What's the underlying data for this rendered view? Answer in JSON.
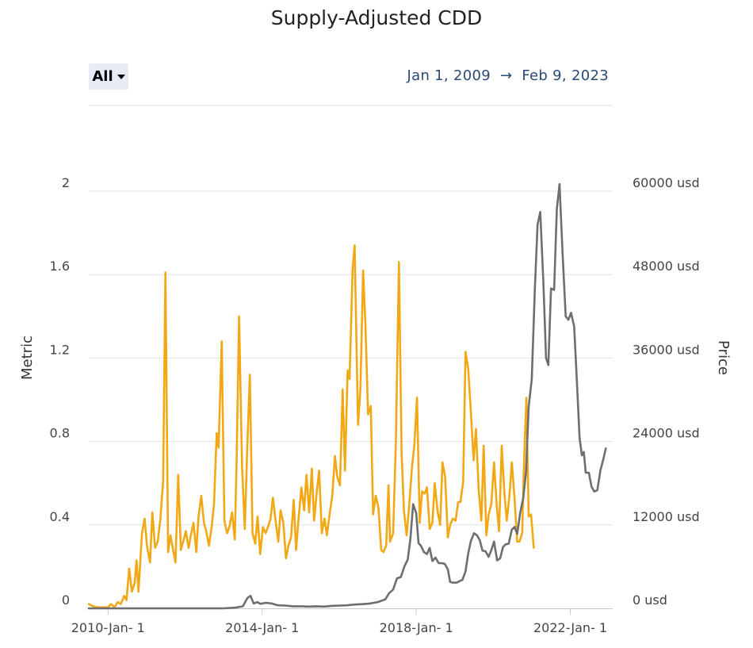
{
  "page": {
    "title": "Supply-Adjusted CDD",
    "range_selector": {
      "selected": "All"
    },
    "date_range": {
      "start": "Jan 1, 2009",
      "arrow": "→",
      "end": "Feb 9, 2023"
    }
  },
  "chart_data": {
    "type": "line",
    "title": "Supply-Adjusted CDD",
    "x_axis": {
      "min": 2009.5,
      "max": 2023.1,
      "ticks": [
        {
          "value": 2010.0,
          "label": "2010-Jan- 1"
        },
        {
          "value": 2014.0,
          "label": "2014-Jan- 1"
        },
        {
          "value": 2018.0,
          "label": "2018-Jan- 1"
        },
        {
          "value": 2022.0,
          "label": "2022-Jan- 1"
        }
      ]
    },
    "y_left": {
      "label": "Metric",
      "min": 0,
      "max": 2,
      "ticks": [
        "0",
        "0.4",
        "0.8",
        "1.2",
        "1.6",
        "2"
      ]
    },
    "y_right": {
      "label": "Price",
      "min": 0,
      "max": 60000,
      "ticks": [
        "0 usd",
        "12000 usd",
        "24000 usd",
        "36000 usd",
        "48000 usd",
        "60000 usd"
      ]
    },
    "grid": true,
    "series": [
      {
        "axis": "left",
        "color": "#f2a814",
        "points": [
          [
            2009.5,
            0.02
          ],
          [
            2009.62,
            0.01
          ],
          [
            2009.7,
            0.005
          ],
          [
            2009.85,
            0.005
          ],
          [
            2010.0,
            0.005
          ],
          [
            2010.08,
            0.02
          ],
          [
            2010.17,
            0.005
          ],
          [
            2010.25,
            0.03
          ],
          [
            2010.33,
            0.02
          ],
          [
            2010.42,
            0.06
          ],
          [
            2010.48,
            0.04
          ],
          [
            2010.55,
            0.19
          ],
          [
            2010.62,
            0.08
          ],
          [
            2010.69,
            0.12
          ],
          [
            2010.74,
            0.23
          ],
          [
            2010.79,
            0.08
          ],
          [
            2010.88,
            0.36
          ],
          [
            2010.95,
            0.43
          ],
          [
            2011.01,
            0.3
          ],
          [
            2011.09,
            0.22
          ],
          [
            2011.15,
            0.46
          ],
          [
            2011.22,
            0.29
          ],
          [
            2011.29,
            0.32
          ],
          [
            2011.36,
            0.43
          ],
          [
            2011.43,
            0.61
          ],
          [
            2011.49,
            1.61
          ],
          [
            2011.56,
            0.27
          ],
          [
            2011.62,
            0.35
          ],
          [
            2011.69,
            0.28
          ],
          [
            2011.75,
            0.22
          ],
          [
            2011.82,
            0.64
          ],
          [
            2011.89,
            0.28
          ],
          [
            2011.95,
            0.32
          ],
          [
            2012.02,
            0.37
          ],
          [
            2012.09,
            0.29
          ],
          [
            2012.15,
            0.35
          ],
          [
            2012.22,
            0.41
          ],
          [
            2012.29,
            0.27
          ],
          [
            2012.35,
            0.44
          ],
          [
            2012.42,
            0.54
          ],
          [
            2012.49,
            0.41
          ],
          [
            2012.55,
            0.37
          ],
          [
            2012.62,
            0.3
          ],
          [
            2012.69,
            0.39
          ],
          [
            2012.75,
            0.5
          ],
          [
            2012.82,
            0.84
          ],
          [
            2012.87,
            0.77
          ],
          [
            2012.95,
            1.28
          ],
          [
            2013.02,
            0.42
          ],
          [
            2013.09,
            0.36
          ],
          [
            2013.15,
            0.39
          ],
          [
            2013.22,
            0.46
          ],
          [
            2013.29,
            0.33
          ],
          [
            2013.34,
            0.72
          ],
          [
            2013.4,
            1.4
          ],
          [
            2013.48,
            0.68
          ],
          [
            2013.55,
            0.38
          ],
          [
            2013.62,
            0.8
          ],
          [
            2013.68,
            1.12
          ],
          [
            2013.75,
            0.36
          ],
          [
            2013.82,
            0.31
          ],
          [
            2013.88,
            0.44
          ],
          [
            2013.95,
            0.26
          ],
          [
            2014.02,
            0.39
          ],
          [
            2014.09,
            0.36
          ],
          [
            2014.15,
            0.39
          ],
          [
            2014.22,
            0.43
          ],
          [
            2014.28,
            0.53
          ],
          [
            2014.35,
            0.42
          ],
          [
            2014.42,
            0.32
          ],
          [
            2014.48,
            0.47
          ],
          [
            2014.55,
            0.41
          ],
          [
            2014.62,
            0.24
          ],
          [
            2014.68,
            0.3
          ],
          [
            2014.75,
            0.34
          ],
          [
            2014.82,
            0.52
          ],
          [
            2014.88,
            0.28
          ],
          [
            2014.95,
            0.44
          ],
          [
            2015.02,
            0.58
          ],
          [
            2015.09,
            0.47
          ],
          [
            2015.15,
            0.64
          ],
          [
            2015.22,
            0.46
          ],
          [
            2015.29,
            0.67
          ],
          [
            2015.35,
            0.42
          ],
          [
            2015.42,
            0.56
          ],
          [
            2015.48,
            0.66
          ],
          [
            2015.55,
            0.36
          ],
          [
            2015.62,
            0.43
          ],
          [
            2015.68,
            0.35
          ],
          [
            2015.75,
            0.45
          ],
          [
            2015.82,
            0.54
          ],
          [
            2015.89,
            0.73
          ],
          [
            2015.95,
            0.63
          ],
          [
            2016.02,
            0.59
          ],
          [
            2016.09,
            1.05
          ],
          [
            2016.15,
            0.66
          ],
          [
            2016.22,
            1.14
          ],
          [
            2016.27,
            1.1
          ],
          [
            2016.35,
            1.63
          ],
          [
            2016.4,
            1.74
          ],
          [
            2016.49,
            0.88
          ],
          [
            2016.55,
            1.05
          ],
          [
            2016.62,
            1.62
          ],
          [
            2016.68,
            1.36
          ],
          [
            2016.75,
            0.93
          ],
          [
            2016.82,
            0.97
          ],
          [
            2016.88,
            0.45
          ],
          [
            2016.95,
            0.54
          ],
          [
            2017.02,
            0.48
          ],
          [
            2017.09,
            0.28
          ],
          [
            2017.15,
            0.27
          ],
          [
            2017.22,
            0.3
          ],
          [
            2017.28,
            0.59
          ],
          [
            2017.32,
            0.32
          ],
          [
            2017.4,
            0.36
          ],
          [
            2017.47,
            0.79
          ],
          [
            2017.55,
            1.66
          ],
          [
            2017.62,
            0.74
          ],
          [
            2017.68,
            0.47
          ],
          [
            2017.75,
            0.35
          ],
          [
            2017.82,
            0.5
          ],
          [
            2017.89,
            0.68
          ],
          [
            2017.95,
            0.78
          ],
          [
            2018.02,
            1.01
          ],
          [
            2018.09,
            0.41
          ],
          [
            2018.15,
            0.56
          ],
          [
            2018.22,
            0.55
          ],
          [
            2018.28,
            0.58
          ],
          [
            2018.35,
            0.38
          ],
          [
            2018.42,
            0.41
          ],
          [
            2018.48,
            0.6
          ],
          [
            2018.55,
            0.47
          ],
          [
            2018.62,
            0.4
          ],
          [
            2018.68,
            0.7
          ],
          [
            2018.75,
            0.63
          ],
          [
            2018.82,
            0.34
          ],
          [
            2018.88,
            0.4
          ],
          [
            2018.95,
            0.43
          ],
          [
            2019.02,
            0.42
          ],
          [
            2019.09,
            0.51
          ],
          [
            2019.15,
            0.51
          ],
          [
            2019.22,
            0.61
          ],
          [
            2019.28,
            1.23
          ],
          [
            2019.35,
            1.15
          ],
          [
            2019.42,
            0.94
          ],
          [
            2019.49,
            0.71
          ],
          [
            2019.55,
            0.86
          ],
          [
            2019.62,
            0.57
          ],
          [
            2019.69,
            0.42
          ],
          [
            2019.75,
            0.78
          ],
          [
            2019.82,
            0.35
          ],
          [
            2019.88,
            0.45
          ],
          [
            2019.95,
            0.5
          ],
          [
            2020.02,
            0.7
          ],
          [
            2020.09,
            0.49
          ],
          [
            2020.15,
            0.37
          ],
          [
            2020.22,
            0.78
          ],
          [
            2020.29,
            0.55
          ],
          [
            2020.35,
            0.42
          ],
          [
            2020.42,
            0.54
          ],
          [
            2020.48,
            0.7
          ],
          [
            2020.55,
            0.53
          ],
          [
            2020.62,
            0.32
          ],
          [
            2020.68,
            0.32
          ],
          [
            2020.75,
            0.36
          ],
          [
            2020.8,
            0.71
          ],
          [
            2020.86,
            1.01
          ],
          [
            2020.92,
            0.44
          ],
          [
            2020.98,
            0.45
          ],
          [
            2021.05,
            0.29
          ]
        ]
      },
      {
        "axis": "right",
        "color": "#6e6e6e",
        "points": [
          [
            2009.5,
            0
          ],
          [
            2010.0,
            0
          ],
          [
            2011.0,
            0
          ],
          [
            2012.0,
            0
          ],
          [
            2013.0,
            0
          ],
          [
            2013.3,
            100
          ],
          [
            2013.5,
            300
          ],
          [
            2013.62,
            1500
          ],
          [
            2013.7,
            1800
          ],
          [
            2013.78,
            700
          ],
          [
            2013.88,
            900
          ],
          [
            2013.95,
            650
          ],
          [
            2014.1,
            800
          ],
          [
            2014.25,
            700
          ],
          [
            2014.4,
            450
          ],
          [
            2014.6,
            400
          ],
          [
            2014.8,
            300
          ],
          [
            2015.0,
            300
          ],
          [
            2015.2,
            250
          ],
          [
            2015.4,
            300
          ],
          [
            2015.6,
            250
          ],
          [
            2015.8,
            350
          ],
          [
            2016.0,
            400
          ],
          [
            2016.2,
            430
          ],
          [
            2016.4,
            550
          ],
          [
            2016.6,
            600
          ],
          [
            2016.8,
            700
          ],
          [
            2017.0,
            900
          ],
          [
            2017.1,
            1100
          ],
          [
            2017.2,
            1300
          ],
          [
            2017.3,
            2200
          ],
          [
            2017.4,
            2700
          ],
          [
            2017.5,
            4300
          ],
          [
            2017.6,
            4500
          ],
          [
            2017.7,
            6100
          ],
          [
            2017.78,
            7000
          ],
          [
            2017.85,
            10000
          ],
          [
            2017.92,
            15000
          ],
          [
            2018.0,
            13700
          ],
          [
            2018.06,
            9400
          ],
          [
            2018.12,
            9000
          ],
          [
            2018.2,
            8100
          ],
          [
            2018.28,
            7800
          ],
          [
            2018.35,
            8700
          ],
          [
            2018.42,
            6800
          ],
          [
            2018.5,
            7300
          ],
          [
            2018.58,
            6500
          ],
          [
            2018.66,
            6500
          ],
          [
            2018.74,
            6400
          ],
          [
            2018.82,
            5600
          ],
          [
            2018.88,
            3800
          ],
          [
            2018.95,
            3700
          ],
          [
            2019.05,
            3700
          ],
          [
            2019.12,
            3900
          ],
          [
            2019.2,
            4100
          ],
          [
            2019.28,
            5300
          ],
          [
            2019.35,
            7900
          ],
          [
            2019.42,
            9700
          ],
          [
            2019.5,
            10800
          ],
          [
            2019.58,
            10500
          ],
          [
            2019.65,
            9800
          ],
          [
            2019.72,
            8300
          ],
          [
            2019.8,
            8200
          ],
          [
            2019.88,
            7400
          ],
          [
            2019.95,
            8400
          ],
          [
            2020.02,
            9600
          ],
          [
            2020.1,
            6900
          ],
          [
            2020.18,
            7200
          ],
          [
            2020.25,
            8800
          ],
          [
            2020.32,
            9200
          ],
          [
            2020.4,
            9300
          ],
          [
            2020.48,
            11300
          ],
          [
            2020.55,
            11700
          ],
          [
            2020.62,
            10700
          ],
          [
            2020.7,
            13800
          ],
          [
            2020.78,
            15900
          ],
          [
            2020.85,
            19600
          ],
          [
            2020.92,
            29000
          ],
          [
            2021.0,
            33000
          ],
          [
            2021.08,
            46000
          ],
          [
            2021.15,
            55200
          ],
          [
            2021.22,
            57000
          ],
          [
            2021.3,
            47000
          ],
          [
            2021.37,
            36000
          ],
          [
            2021.43,
            35000
          ],
          [
            2021.5,
            46000
          ],
          [
            2021.58,
            45800
          ],
          [
            2021.65,
            57400
          ],
          [
            2021.72,
            61000
          ],
          [
            2021.8,
            51000
          ],
          [
            2021.88,
            42000
          ],
          [
            2021.95,
            41500
          ],
          [
            2022.02,
            42500
          ],
          [
            2022.1,
            40500
          ],
          [
            2022.18,
            31500
          ],
          [
            2022.24,
            24500
          ],
          [
            2022.3,
            22000
          ],
          [
            2022.35,
            22500
          ],
          [
            2022.4,
            19500
          ],
          [
            2022.48,
            19500
          ],
          [
            2022.55,
            17500
          ],
          [
            2022.62,
            16800
          ],
          [
            2022.7,
            17000
          ],
          [
            2022.78,
            19800
          ],
          [
            2022.86,
            21500
          ],
          [
            2022.92,
            23000
          ]
        ]
      }
    ]
  }
}
